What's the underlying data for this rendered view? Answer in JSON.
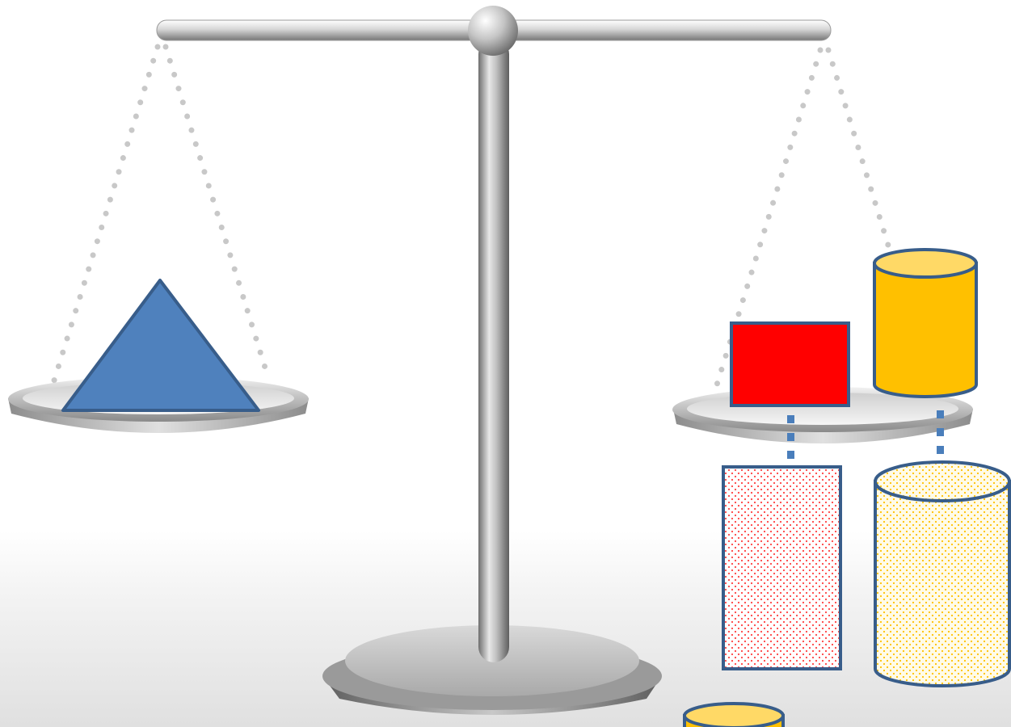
{
  "scene": {
    "description_free": true,
    "colors": {
      "background_top": "#ffffff",
      "background_bottom": "#e0e0e0",
      "metal_light": "#f2f2f2",
      "metal_mid": "#bdbdbd",
      "metal_dark": "#7a7a7a",
      "chain_dots": "#c8c8c8",
      "triangle_fill": "#4f81bd",
      "shape_stroke": "#385d8a",
      "red_block_fill": "#ff0000",
      "gold_cylinder_fill": "#ffc000",
      "gold_cylinder_top": "#ffd966",
      "dotted_red": "#ff4040",
      "dotted_gold": "#ffc000",
      "connector_dashes": "#4a7ebb"
    },
    "icons": {
      "balance": "balance-scale-icon",
      "triangle": "triangle-icon",
      "block": "rectangle-icon",
      "cylinder": "cylinder-icon"
    }
  }
}
